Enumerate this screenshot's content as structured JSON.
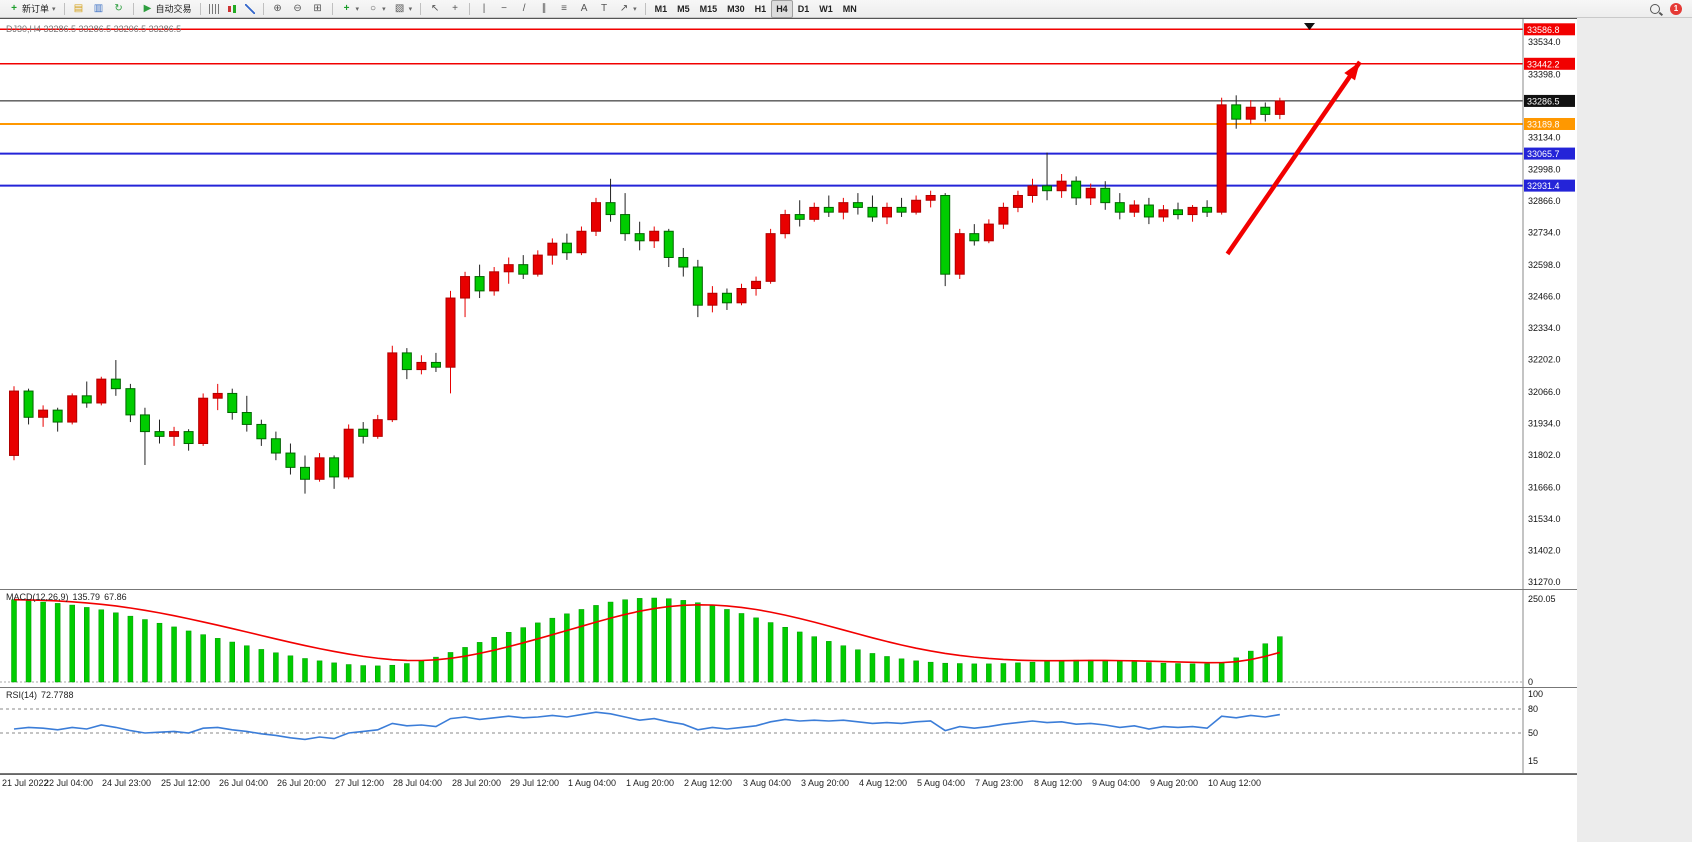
{
  "toolbar": {
    "groups": [
      {
        "items": [
          {
            "name": "new-order-button",
            "icon": "new-order-icon",
            "glyph": "+",
            "label": "新订单",
            "dropdown": true
          }
        ]
      },
      {
        "items": [
          {
            "name": "market-watch-button",
            "icon": "market-watch-icon",
            "glyph": "▤"
          },
          {
            "name": "navigator-button",
            "icon": "navigator-icon",
            "glyph": "▥"
          },
          {
            "name": "refresh-button",
            "icon": "refresh-icon",
            "glyph": "↻"
          }
        ]
      },
      {
        "items": [
          {
            "name": "autotrading-button",
            "icon": "autotrading-play-icon",
            "glyph": "▶",
            "label": "自动交易"
          }
        ]
      },
      {
        "items": [
          {
            "name": "bar-chart-button",
            "icon": "bar-chart-icon",
            "css": "ic-bars"
          },
          {
            "name": "candlestick-chart-button",
            "icon": "candlestick-chart-icon",
            "css": "ic-candles"
          },
          {
            "name": "line-chart-button",
            "icon": "line-chart-icon",
            "css": "ic-linechart"
          }
        ]
      },
      {
        "items": [
          {
            "name": "zoom-in-button",
            "icon": "zoom-in-icon",
            "glyph": "⊕"
          },
          {
            "name": "zoom-out-button",
            "icon": "zoom-out-icon",
            "glyph": "⊖"
          },
          {
            "name": "tile-windows-button",
            "icon": "tile-windows-icon",
            "glyph": "⊞"
          }
        ]
      },
      {
        "items": [
          {
            "name": "indicators-button",
            "icon": "indicators-icon",
            "glyph": "+",
            "dropdown": true
          },
          {
            "name": "periods-button",
            "icon": "periods-icon",
            "glyph": "○",
            "dropdown": true
          },
          {
            "name": "templates-button",
            "icon": "templates-icon",
            "glyph": "▧",
            "dropdown": true
          }
        ]
      },
      {
        "items": [
          {
            "name": "cursor-button",
            "icon": "cursor-icon",
            "glyph": "↖"
          },
          {
            "name": "crosshair-button",
            "icon": "crosshair-icon",
            "glyph": "+"
          }
        ]
      },
      {
        "items": [
          {
            "name": "vertical-line-button",
            "icon": "vertical-line-icon",
            "glyph": "|"
          },
          {
            "name": "horizontal-line-button",
            "icon": "horizontal-line-icon",
            "glyph": "−"
          },
          {
            "name": "trendline-button",
            "icon": "trendline-icon",
            "glyph": "/"
          },
          {
            "name": "equidistant-channel-button",
            "icon": "channel-icon",
            "glyph": "∥"
          },
          {
            "name": "fibonacci-button",
            "icon": "fibonacci-icon",
            "glyph": "≡"
          },
          {
            "name": "text-button",
            "icon": "text-icon",
            "glyph": "A"
          },
          {
            "name": "text-label-button",
            "icon": "text-label-icon",
            "glyph": "T"
          },
          {
            "name": "arrows-button",
            "icon": "arrows-icon",
            "glyph": "↗",
            "dropdown": true
          }
        ]
      },
      {
        "items": [
          {
            "name": "timeframe-m1-button",
            "label": "M1",
            "tf": true
          },
          {
            "name": "timeframe-m5-button",
            "label": "M5",
            "tf": true
          },
          {
            "name": "timeframe-m15-button",
            "label": "M15",
            "tf": true
          },
          {
            "name": "timeframe-m30-button",
            "label": "M30",
            "tf": true
          },
          {
            "name": "timeframe-h1-button",
            "label": "H1",
            "tf": true
          },
          {
            "name": "timeframe-h4-button",
            "label": "H4",
            "tf": true,
            "active": true
          },
          {
            "name": "timeframe-d1-button",
            "label": "D1",
            "tf": true
          },
          {
            "name": "timeframe-w1-button",
            "label": "W1",
            "tf": true
          },
          {
            "name": "timeframe-mn-button",
            "label": "MN",
            "tf": true
          }
        ]
      }
    ],
    "right": [
      {
        "name": "search-button",
        "icon": "magnifier-icon",
        "css": "ic-magnifier"
      },
      {
        "name": "notification-badge",
        "label": "1",
        "badge": true
      }
    ]
  },
  "chart_data": {
    "type": "candlestick",
    "title": "DJ30,H4 33286.5 33286.5 33206.5 33286.5",
    "symbol": "DJ30",
    "timeframe": "H4",
    "current_price": 33286.5,
    "ylim": [
      31240,
      33630
    ],
    "colors": {
      "up": "#e80000",
      "up_border": "#b00000",
      "down": "#00cc00",
      "down_border": "#006600",
      "down_wick": "#222222",
      "macd_hist": "#00cc00",
      "macd_signal": "#f20000",
      "rsi_line": "#3b7dd8",
      "level_red": "#f20000",
      "level_orange": "#ff9800",
      "level_blue": "#2424d8",
      "current_line": "#111111",
      "arrow": "#f20000"
    },
    "levels": [
      {
        "price": 33586.8,
        "color": "#f20000",
        "width": 1.5
      },
      {
        "price": 33442.2,
        "color": "#f20000",
        "width": 1.5
      },
      {
        "price": 33286.5,
        "color": "#111111",
        "width": 1,
        "current": true
      },
      {
        "price": 33189.8,
        "color": "#ff9800",
        "width": 2
      },
      {
        "price": 33065.7,
        "color": "#2424d8",
        "width": 2
      },
      {
        "price": 32931.4,
        "color": "#2424d8",
        "width": 2
      }
    ],
    "axis_labels": [
      33534.0,
      33398.0,
      33134.0,
      32998.0,
      32866.0,
      32734.0,
      32598.0,
      32466.0,
      32334.0,
      32202.0,
      32066.0,
      31934.0,
      31802.0,
      31666.0,
      31534.0,
      31402.0,
      31270.0
    ],
    "time_labels": [
      "21 Jul 2022",
      "22 Jul 04:00",
      "24 Jul 23:00",
      "25 Jul 12:00",
      "26 Jul 04:00",
      "26 Jul 20:00",
      "27 Jul 12:00",
      "28 Jul 04:00",
      "28 Jul 20:00",
      "29 Jul 12:00",
      "1 Aug 04:00",
      "1 Aug 20:00",
      "2 Aug 12:00",
      "3 Aug 04:00",
      "3 Aug 20:00",
      "4 Aug 12:00",
      "5 Aug 04:00",
      "7 Aug 23:00",
      "8 Aug 12:00",
      "9 Aug 04:00",
      "9 Aug 20:00",
      "10 Aug 12:00"
    ],
    "candles": [
      [
        31800,
        32090,
        31780,
        32070
      ],
      [
        32070,
        32080,
        31930,
        31960
      ],
      [
        31960,
        32010,
        31920,
        31990
      ],
      [
        31990,
        32000,
        31900,
        31940
      ],
      [
        31940,
        32060,
        31930,
        32050
      ],
      [
        32050,
        32110,
        32000,
        32020
      ],
      [
        32020,
        32130,
        32010,
        32120
      ],
      [
        32120,
        32200,
        32050,
        32080
      ],
      [
        32080,
        32100,
        31940,
        31970
      ],
      [
        31970,
        32000,
        31760,
        31900
      ],
      [
        31900,
        31950,
        31850,
        31880
      ],
      [
        31880,
        31920,
        31840,
        31900
      ],
      [
        31900,
        31910,
        31820,
        31850
      ],
      [
        31850,
        32060,
        31840,
        32040
      ],
      [
        32040,
        32100,
        31990,
        32060
      ],
      [
        32060,
        32080,
        31950,
        31980
      ],
      [
        31980,
        32050,
        31900,
        31930
      ],
      [
        31930,
        31950,
        31840,
        31870
      ],
      [
        31870,
        31900,
        31780,
        31810
      ],
      [
        31810,
        31850,
        31720,
        31750
      ],
      [
        31750,
        31800,
        31640,
        31700
      ],
      [
        31700,
        31810,
        31690,
        31790
      ],
      [
        31790,
        31800,
        31660,
        31710
      ],
      [
        31710,
        31930,
        31700,
        31910
      ],
      [
        31910,
        31940,
        31850,
        31880
      ],
      [
        31880,
        31970,
        31870,
        31950
      ],
      [
        31950,
        32260,
        31940,
        32230
      ],
      [
        32230,
        32250,
        32120,
        32160
      ],
      [
        32160,
        32220,
        32140,
        32190
      ],
      [
        32190,
        32230,
        32150,
        32170
      ],
      [
        32170,
        32490,
        32060,
        32460
      ],
      [
        32460,
        32570,
        32380,
        32550
      ],
      [
        32550,
        32600,
        32460,
        32490
      ],
      [
        32490,
        32590,
        32470,
        32570
      ],
      [
        32570,
        32630,
        32520,
        32600
      ],
      [
        32600,
        32640,
        32540,
        32560
      ],
      [
        32560,
        32660,
        32550,
        32640
      ],
      [
        32640,
        32710,
        32600,
        32690
      ],
      [
        32690,
        32730,
        32620,
        32650
      ],
      [
        32650,
        32760,
        32640,
        32740
      ],
      [
        32740,
        32880,
        32720,
        32860
      ],
      [
        32860,
        32960,
        32780,
        32810
      ],
      [
        32810,
        32900,
        32700,
        32730
      ],
      [
        32730,
        32780,
        32660,
        32700
      ],
      [
        32700,
        32760,
        32670,
        32740
      ],
      [
        32740,
        32750,
        32590,
        32630
      ],
      [
        32630,
        32670,
        32550,
        32590
      ],
      [
        32590,
        32620,
        32380,
        32430
      ],
      [
        32430,
        32510,
        32400,
        32480
      ],
      [
        32480,
        32500,
        32410,
        32440
      ],
      [
        32440,
        32520,
        32430,
        32500
      ],
      [
        32500,
        32550,
        32470,
        32530
      ],
      [
        32530,
        32750,
        32520,
        32730
      ],
      [
        32730,
        32830,
        32710,
        32810
      ],
      [
        32810,
        32870,
        32760,
        32790
      ],
      [
        32790,
        32860,
        32780,
        32840
      ],
      [
        32840,
        32890,
        32800,
        32820
      ],
      [
        32820,
        32880,
        32790,
        32860
      ],
      [
        32860,
        32900,
        32810,
        32840
      ],
      [
        32840,
        32890,
        32780,
        32800
      ],
      [
        32800,
        32860,
        32770,
        32840
      ],
      [
        32840,
        32880,
        32800,
        32820
      ],
      [
        32820,
        32890,
        32810,
        32870
      ],
      [
        32870,
        32910,
        32840,
        32890
      ],
      [
        32890,
        32900,
        32510,
        32560
      ],
      [
        32560,
        32750,
        32540,
        32730
      ],
      [
        32730,
        32770,
        32680,
        32700
      ],
      [
        32700,
        32790,
        32690,
        32770
      ],
      [
        32770,
        32860,
        32750,
        32840
      ],
      [
        32840,
        32910,
        32820,
        32890
      ],
      [
        32890,
        32960,
        32860,
        32930
      ],
      [
        32930,
        33070,
        32870,
        32910
      ],
      [
        32910,
        32980,
        32880,
        32950
      ],
      [
        32950,
        32970,
        32850,
        32880
      ],
      [
        32880,
        32940,
        32850,
        32920
      ],
      [
        32920,
        32950,
        32830,
        32860
      ],
      [
        32860,
        32900,
        32790,
        32820
      ],
      [
        32820,
        32870,
        32800,
        32850
      ],
      [
        32850,
        32880,
        32770,
        32800
      ],
      [
        32800,
        32850,
        32780,
        32830
      ],
      [
        32830,
        32860,
        32790,
        32810
      ],
      [
        32810,
        32850,
        32780,
        32840
      ],
      [
        32840,
        32870,
        32800,
        32820
      ],
      [
        32820,
        33300,
        32810,
        33270
      ],
      [
        33270,
        33310,
        33170,
        33210
      ],
      [
        33210,
        33290,
        33190,
        33260
      ],
      [
        33260,
        33280,
        33200,
        33230
      ],
      [
        33230,
        33300,
        33210,
        33286.5
      ]
    ],
    "arrow": {
      "from": {
        "index": 83.4,
        "price": 32645
      },
      "to": {
        "index": 92.5,
        "price": 33450
      },
      "color": "#f20000",
      "width": 4.5
    },
    "macd": {
      "label": "MACD(12,26,9)",
      "value_main": "135.79",
      "value_signal": "67.86",
      "scale_max": "250.05",
      "scale_min": "0",
      "scale_max_value": 250.05,
      "hist": [
        245,
        242,
        238,
        234,
        229,
        222,
        215,
        206,
        196,
        186,
        175,
        164,
        152,
        141,
        130,
        119,
        108,
        97,
        87,
        78,
        70,
        63,
        57,
        52,
        49,
        48,
        50,
        55,
        63,
        74,
        88,
        103,
        118,
        133,
        148,
        162,
        176,
        190,
        203,
        216,
        228,
        238,
        245,
        249,
        250,
        248,
        243,
        236,
        227,
        216,
        204,
        191,
        177,
        163,
        149,
        135,
        121,
        108,
        96,
        85,
        76,
        69,
        63,
        59,
        56,
        55,
        54,
        54,
        55,
        57,
        59,
        62,
        64,
        65,
        65,
        64,
        62,
        60,
        58,
        56,
        55,
        54,
        54,
        58,
        72,
        92,
        114,
        135
      ]
    },
    "rsi": {
      "label": "RSI(14)",
      "value": "72.7788",
      "axis": [
        {
          "label": "100",
          "value": 100
        },
        {
          "label": "80",
          "value": 80
        },
        {
          "label": "50",
          "value": 50
        },
        {
          "label": "15",
          "value": 15
        }
      ],
      "level_lines": [
        80,
        50
      ],
      "values": [
        55,
        57,
        56,
        54,
        57,
        55,
        60,
        57,
        53,
        50,
        51,
        52,
        50,
        56,
        57,
        54,
        52,
        49,
        47,
        44,
        42,
        45,
        43,
        50,
        52,
        54,
        62,
        59,
        60,
        58,
        68,
        70,
        67,
        69,
        71,
        69,
        70,
        72,
        70,
        73,
        76,
        74,
        70,
        66,
        68,
        64,
        61,
        54,
        57,
        55,
        57,
        59,
        64,
        67,
        65,
        66,
        65,
        66,
        64,
        62,
        63,
        62,
        64,
        65,
        53,
        58,
        56,
        58,
        61,
        63,
        65,
        63,
        64,
        61,
        62,
        60,
        57,
        59,
        55,
        58,
        57,
        58,
        56,
        71,
        69,
        72,
        70,
        73
      ]
    }
  }
}
